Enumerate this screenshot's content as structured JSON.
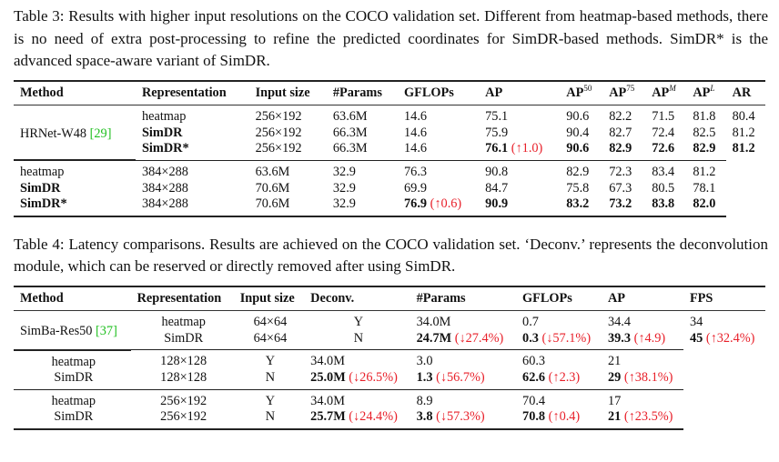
{
  "table3": {
    "caption": "Table 3: Results with higher input resolutions on the COCO validation set. Different from heatmap-based methods, there is no need of extra post-processing to refine the predicted coordinates for SimDR-based methods. SimDR* is the advanced space-aware variant of SimDR.",
    "headers": [
      {
        "t": "Method"
      },
      {
        "t": "Representation"
      },
      {
        "t": "Input size"
      },
      {
        "t": "#Params"
      },
      {
        "t": "GFLOPs"
      },
      {
        "t": "AP"
      },
      {
        "t": "AP",
        "s": "50"
      },
      {
        "t": "AP",
        "s": "75"
      },
      {
        "t": "AP",
        "s": "M",
        "i": true
      },
      {
        "t": "AP",
        "s": "L",
        "i": true
      },
      {
        "t": "AR"
      }
    ],
    "method": "HRNet-W48",
    "method_ref": "[29]",
    "groups": [
      [
        [
          {
            "v": "heatmap"
          },
          {
            "v": "256×192"
          },
          {
            "v": "63.6M"
          },
          {
            "v": "14.6"
          },
          {
            "v": "75.1"
          },
          {
            "v": "90.6"
          },
          {
            "v": "82.2"
          },
          {
            "v": "71.5"
          },
          {
            "v": "81.8"
          },
          {
            "v": "80.4"
          }
        ],
        [
          {
            "v": "SimDR",
            "b": 1
          },
          {
            "v": "256×192"
          },
          {
            "v": "66.3M"
          },
          {
            "v": "14.6"
          },
          {
            "v": "75.9"
          },
          {
            "v": "90.4"
          },
          {
            "v": "82.7"
          },
          {
            "v": "72.4"
          },
          {
            "v": "82.5"
          },
          {
            "v": "81.2"
          }
        ],
        [
          {
            "v": "SimDR*",
            "b": 1
          },
          {
            "v": "256×192"
          },
          {
            "v": "66.3M"
          },
          {
            "v": "14.6"
          },
          {
            "v": "76.1",
            "b": 1,
            "d": "(↑1.0)"
          },
          {
            "v": "90.6",
            "b": 1
          },
          {
            "v": "82.9",
            "b": 1
          },
          {
            "v": "72.6",
            "b": 1
          },
          {
            "v": "82.9",
            "b": 1
          },
          {
            "v": "81.2",
            "b": 1
          }
        ]
      ],
      [
        [
          {
            "v": "heatmap"
          },
          {
            "v": "384×288"
          },
          {
            "v": "63.6M"
          },
          {
            "v": "32.9"
          },
          {
            "v": "76.3"
          },
          {
            "v": "90.8"
          },
          {
            "v": "82.9"
          },
          {
            "v": "72.3"
          },
          {
            "v": "83.4"
          },
          {
            "v": "81.2"
          }
        ],
        [
          {
            "v": "SimDR",
            "b": 1
          },
          {
            "v": "384×288"
          },
          {
            "v": "70.6M"
          },
          {
            "v": "32.9"
          },
          {
            "v": "69.9"
          },
          {
            "v": "84.7"
          },
          {
            "v": "75.8"
          },
          {
            "v": "67.3"
          },
          {
            "v": "80.5"
          },
          {
            "v": "78.1"
          }
        ],
        [
          {
            "v": "SimDR*",
            "b": 1
          },
          {
            "v": "384×288"
          },
          {
            "v": "70.6M"
          },
          {
            "v": "32.9"
          },
          {
            "v": "76.9",
            "b": 1,
            "d": "(↑0.6)"
          },
          {
            "v": "90.9",
            "b": 1
          },
          {
            "v": "83.2",
            "b": 1
          },
          {
            "v": "73.2",
            "b": 1
          },
          {
            "v": "83.8",
            "b": 1
          },
          {
            "v": "82.0",
            "b": 1
          }
        ]
      ]
    ]
  },
  "table4": {
    "caption": "Table 4: Latency comparisons. Results are achieved on the COCO validation set. ‘Deconv.’ represents the deconvolution module, which can be reserved or directly removed after using SimDR.",
    "headers": [
      {
        "t": "Method"
      },
      {
        "t": "Representation"
      },
      {
        "t": "Input size"
      },
      {
        "t": "Deconv."
      },
      {
        "t": "#Params"
      },
      {
        "t": "GFLOPs"
      },
      {
        "t": "AP"
      },
      {
        "t": "FPS"
      }
    ],
    "method": "SimBa-Res50",
    "method_ref": "[37]",
    "groups": [
      [
        [
          {
            "v": "heatmap"
          },
          {
            "v": "64×64"
          },
          {
            "v": "Y"
          },
          {
            "v": "34.0M"
          },
          {
            "v": "0.7"
          },
          {
            "v": "34.4"
          },
          {
            "v": "34"
          }
        ],
        [
          {
            "v": "SimDR"
          },
          {
            "v": "64×64"
          },
          {
            "v": "N"
          },
          {
            "v": "24.7M",
            "b": 1,
            "d": "(↓27.4%)"
          },
          {
            "v": "0.3",
            "b": 1,
            "d": "(↓57.1%)"
          },
          {
            "v": "39.3",
            "b": 1,
            "d": "(↑4.9)"
          },
          {
            "v": "45",
            "b": 1,
            "d": "(↑32.4%)"
          }
        ]
      ],
      [
        [
          {
            "v": "heatmap"
          },
          {
            "v": "128×128"
          },
          {
            "v": "Y"
          },
          {
            "v": "34.0M"
          },
          {
            "v": "3.0"
          },
          {
            "v": "60.3"
          },
          {
            "v": "21"
          }
        ],
        [
          {
            "v": "SimDR"
          },
          {
            "v": "128×128"
          },
          {
            "v": "N"
          },
          {
            "v": "25.0M",
            "b": 1,
            "d": "(↓26.5%)"
          },
          {
            "v": "1.3",
            "b": 1,
            "d": "(↓56.7%)"
          },
          {
            "v": "62.6",
            "b": 1,
            "d": "(↑2.3)"
          },
          {
            "v": "29",
            "b": 1,
            "d": "(↑38.1%)"
          }
        ]
      ],
      [
        [
          {
            "v": "heatmap"
          },
          {
            "v": "256×192"
          },
          {
            "v": "Y"
          },
          {
            "v": "34.0M"
          },
          {
            "v": "8.9"
          },
          {
            "v": "70.4"
          },
          {
            "v": "17"
          }
        ],
        [
          {
            "v": "SimDR"
          },
          {
            "v": "256×192"
          },
          {
            "v": "N"
          },
          {
            "v": "25.7M",
            "b": 1,
            "d": "(↓24.4%)"
          },
          {
            "v": "3.8",
            "b": 1,
            "d": "(↓57.3%)"
          },
          {
            "v": "70.8",
            "b": 1,
            "d": "(↑0.4)"
          },
          {
            "v": "21",
            "b": 1,
            "d": "(↑23.5%)"
          }
        ]
      ]
    ]
  },
  "colors": {
    "delta": "#e8202a",
    "citation": "#22c022"
  }
}
